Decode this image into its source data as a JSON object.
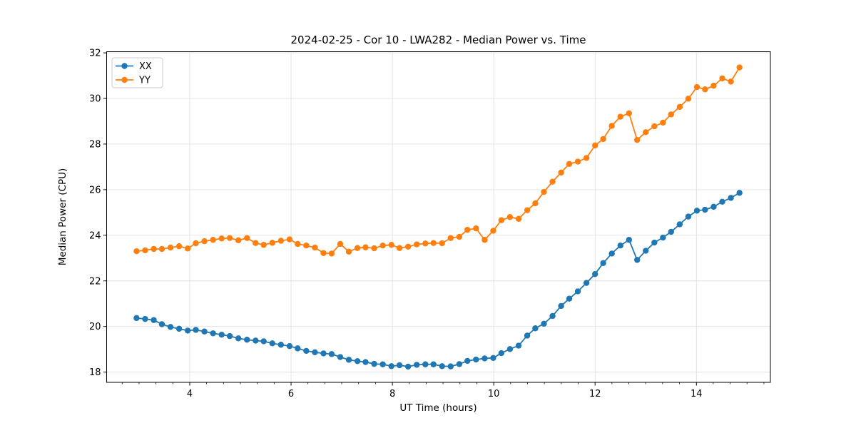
{
  "chart_data": {
    "type": "line",
    "title": "2024-02-25 - Cor 10 - LWA282 - Median Power vs. Time",
    "xlabel": "UT Time (hours)",
    "ylabel": "Median Power (CPU)",
    "xlim": [
      2.36,
      15.46
    ],
    "ylim": [
      17.55,
      32.05
    ],
    "x_major_ticks": [
      4,
      6,
      8,
      10,
      12,
      14
    ],
    "x_minor_tick_step": 0.3333,
    "y_major_ticks": [
      18,
      20,
      22,
      24,
      26,
      28,
      30,
      32
    ],
    "grid": true,
    "grid_color": "#e0e0e0",
    "legend_position": "upper-left",
    "x": [
      2.95,
      3.12,
      3.29,
      3.45,
      3.62,
      3.79,
      3.96,
      4.12,
      4.29,
      4.46,
      4.63,
      4.79,
      4.96,
      5.13,
      5.3,
      5.46,
      5.63,
      5.8,
      5.97,
      6.13,
      6.3,
      6.47,
      6.64,
      6.8,
      6.97,
      7.14,
      7.31,
      7.47,
      7.64,
      7.81,
      7.98,
      8.14,
      8.31,
      8.48,
      8.65,
      8.81,
      8.98,
      9.15,
      9.32,
      9.48,
      9.65,
      9.82,
      9.99,
      10.15,
      10.32,
      10.49,
      10.66,
      10.82,
      10.99,
      11.16,
      11.33,
      11.49,
      11.66,
      11.83,
      12.0,
      12.16,
      12.33,
      12.5,
      12.67,
      12.83,
      13.0,
      13.17,
      13.34,
      13.5,
      13.67,
      13.84,
      14.01,
      14.17,
      14.34,
      14.51,
      14.68,
      14.85
    ],
    "series": [
      {
        "name": "XX",
        "color": "#1f77b4",
        "values": [
          20.37,
          20.33,
          20.28,
          20.1,
          19.98,
          19.9,
          19.82,
          19.85,
          19.78,
          19.7,
          19.64,
          19.58,
          19.48,
          19.42,
          19.38,
          19.35,
          19.26,
          19.2,
          19.14,
          19.04,
          18.93,
          18.87,
          18.82,
          18.79,
          18.66,
          18.54,
          18.48,
          18.44,
          18.36,
          18.34,
          18.26,
          18.3,
          18.24,
          18.32,
          18.34,
          18.34,
          18.26,
          18.25,
          18.35,
          18.49,
          18.55,
          18.6,
          18.62,
          18.83,
          19.01,
          19.16,
          19.6,
          19.92,
          20.12,
          20.46,
          20.9,
          21.22,
          21.54,
          21.91,
          22.3,
          22.78,
          23.2,
          23.55,
          23.8,
          22.92,
          23.32,
          23.68,
          23.9,
          24.15,
          24.48,
          24.82,
          25.08,
          25.12,
          25.25,
          25.47,
          25.64,
          25.86
        ]
      },
      {
        "name": "YY",
        "color": "#ff7f0e",
        "values": [
          23.3,
          23.34,
          23.4,
          23.4,
          23.46,
          23.52,
          23.42,
          23.65,
          23.74,
          23.8,
          23.86,
          23.88,
          23.78,
          23.88,
          23.66,
          23.58,
          23.67,
          23.76,
          23.82,
          23.62,
          23.55,
          23.46,
          23.22,
          23.2,
          23.62,
          23.28,
          23.44,
          23.47,
          23.43,
          23.55,
          23.58,
          23.44,
          23.5,
          23.6,
          23.64,
          23.66,
          23.65,
          23.88,
          23.93,
          24.24,
          24.3,
          23.8,
          24.2,
          24.66,
          24.8,
          24.72,
          25.1,
          25.4,
          25.9,
          26.35,
          26.75,
          27.13,
          27.23,
          27.39,
          27.94,
          28.22,
          28.8,
          29.2,
          29.35,
          28.18,
          28.52,
          28.78,
          28.94,
          29.3,
          29.63,
          29.99,
          30.5,
          30.4,
          30.56,
          30.88,
          30.74,
          31.36
        ]
      }
    ]
  }
}
